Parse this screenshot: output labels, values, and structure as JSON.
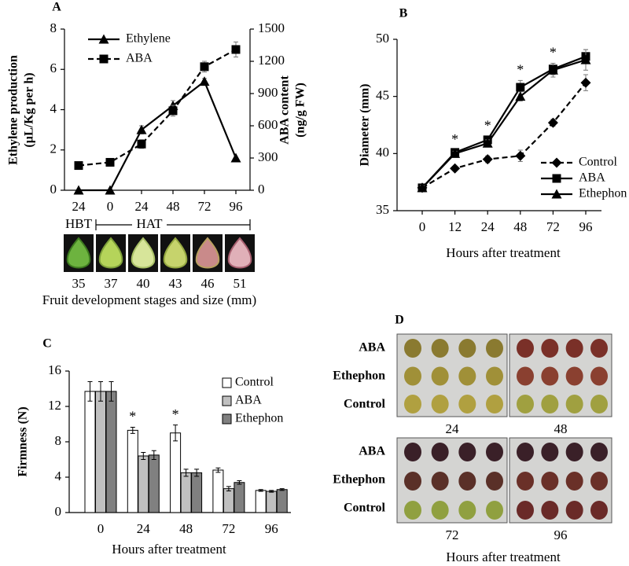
{
  "chart_data": [
    {
      "type": "line",
      "panel_label": "A",
      "categories": [
        "24",
        "0",
        "24",
        "48",
        "72",
        "96"
      ],
      "stage_groups": [
        "HBT",
        "HAT"
      ],
      "fruit_sizes": [
        35,
        37,
        40,
        43,
        46,
        51
      ],
      "x_label": "Fruit development stages and size (mm)",
      "y_label": [
        "Ethylene production",
        "(µL/Kg per h)"
      ],
      "y2_label": [
        "ABA content",
        "(ng/g FW)"
      ],
      "ylim": [
        0,
        8
      ],
      "yticks": [
        0,
        2,
        4,
        6,
        8
      ],
      "y2lim": [
        0,
        1500
      ],
      "y2ticks": [
        0,
        300,
        600,
        900,
        1200,
        1500
      ],
      "series": [
        {
          "name": "Ethylene",
          "color": "#000000",
          "marker": "triangle",
          "dash": false,
          "values": [
            0,
            0,
            3.0,
            4.2,
            5.4,
            1.6
          ],
          "errors": [
            null,
            null,
            0.2,
            0.25,
            0.15,
            null
          ]
        },
        {
          "name": "ABA",
          "color": "#000000",
          "marker": "square",
          "dash": true,
          "axis": "y2",
          "values": [
            230,
            260,
            430,
            740,
            1150,
            1310
          ],
          "errors": [
            20,
            20,
            40,
            50,
            50,
            70
          ]
        }
      ]
    },
    {
      "type": "line",
      "panel_label": "B",
      "categories": [
        "0",
        "12",
        "24",
        "48",
        "72",
        "96"
      ],
      "x_label": "Hours after treatment",
      "y_label": [
        "Diameter (mm)"
      ],
      "ylim": [
        35,
        50
      ],
      "yticks": [
        35,
        40,
        45,
        50
      ],
      "significance": [
        null,
        "*",
        "*",
        "*",
        "*",
        null
      ],
      "series": [
        {
          "name": "Control",
          "color": "#000000",
          "marker": "diamond",
          "dash": true,
          "values": [
            37,
            38.7,
            39.5,
            39.8,
            42.7,
            46.2
          ],
          "errors": [
            0.2,
            0.2,
            0.3,
            0.5,
            0.3,
            0.7
          ]
        },
        {
          "name": "ABA",
          "color": "#000000",
          "marker": "square",
          "dash": false,
          "values": [
            37,
            40.1,
            41.2,
            45.8,
            47.4,
            48.5
          ],
          "errors": [
            0.2,
            0.2,
            0.3,
            0.6,
            0.5,
            0.6
          ]
        },
        {
          "name": "Ethephon",
          "color": "#000000",
          "marker": "triangle",
          "dash": false,
          "values": [
            37,
            40.0,
            40.9,
            45.0,
            47.3,
            48.2
          ],
          "errors": [
            0.2,
            0.2,
            0.3,
            0.4,
            0.6,
            0.9
          ]
        }
      ]
    },
    {
      "type": "bar",
      "panel_label": "C",
      "categories": [
        "0",
        "24",
        "48",
        "72",
        "96"
      ],
      "x_label": "Hours after treatment",
      "y_label": [
        "Firmness (N)"
      ],
      "ylim": [
        0,
        16
      ],
      "yticks": [
        0,
        4,
        8,
        12,
        16
      ],
      "significance": [
        null,
        "*",
        "*",
        null,
        null
      ],
      "series": [
        {
          "name": "Control",
          "color": "#ffffff",
          "values": [
            13.7,
            9.3,
            9.0,
            4.8,
            2.5
          ],
          "errors": [
            1.1,
            0.35,
            0.9,
            0.25,
            0.1
          ]
        },
        {
          "name": "ABA",
          "color": "#c0c0c0",
          "values": [
            13.7,
            6.4,
            4.5,
            2.7,
            2.4
          ],
          "errors": [
            1.1,
            0.4,
            0.4,
            0.25,
            0.1
          ]
        },
        {
          "name": "Ethephon",
          "color": "#808080",
          "values": [
            13.7,
            6.5,
            4.5,
            3.4,
            2.6
          ],
          "errors": [
            1.1,
            0.5,
            0.4,
            0.2,
            0.1
          ]
        }
      ]
    }
  ],
  "photo_panel": {
    "panel_label": "D",
    "row_labels": [
      "ABA",
      "Ethephon",
      "Control"
    ],
    "time_labels": [
      "24",
      "48",
      "72",
      "96"
    ],
    "x_label": "Hours after treatment"
  }
}
